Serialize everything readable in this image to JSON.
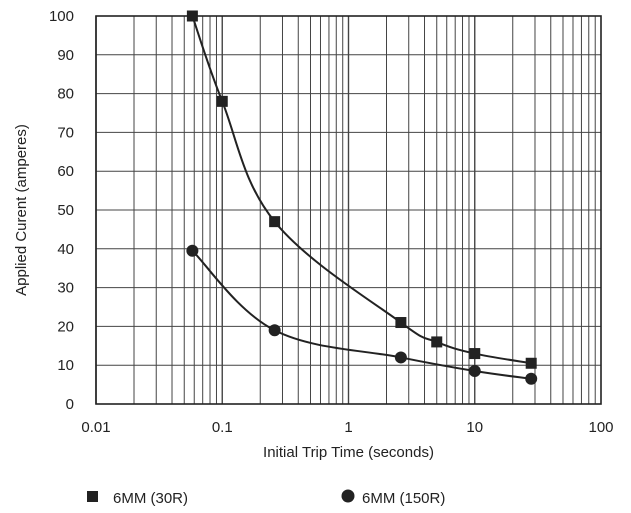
{
  "chart_data": {
    "type": "line",
    "xlabel": "Initial Trip Time (seconds)",
    "ylabel": "Applied Curent (amperes)",
    "xscale": "log",
    "xlim": [
      0.01,
      100
    ],
    "ylim": [
      0,
      100
    ],
    "x_ticks": [
      "0.01",
      "0.1",
      "1",
      "10",
      "100"
    ],
    "y_ticks": [
      "0",
      "10",
      "20",
      "30",
      "40",
      "50",
      "60",
      "70",
      "80",
      "90",
      "100"
    ],
    "grid": true,
    "legend_position": "bottom",
    "colors": {
      "ink": "#222222",
      "grid": "#444444"
    },
    "series": [
      {
        "name": "6MM (30R)",
        "marker": "square",
        "x": [
          0.058,
          0.1,
          0.26,
          2.6,
          5,
          10,
          28
        ],
        "y": [
          100,
          78,
          47,
          21,
          16,
          13,
          10.5
        ]
      },
      {
        "name": "6MM (150R)",
        "marker": "circle",
        "x": [
          0.058,
          0.26,
          2.6,
          10,
          28
        ],
        "y": [
          39.5,
          19,
          12,
          8.5,
          6.5
        ]
      }
    ]
  }
}
